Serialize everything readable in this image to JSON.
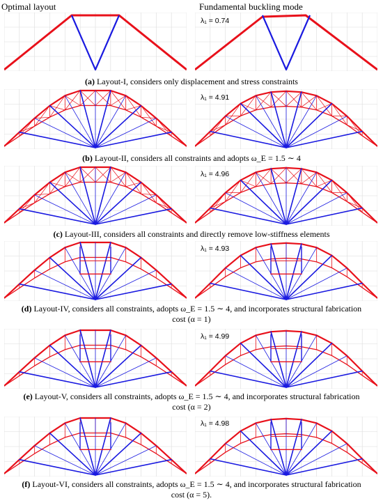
{
  "headers": {
    "left": "Optimal layout",
    "right": "Fundamental buckling mode"
  },
  "lambda_symbol": "λ₁",
  "rows": [
    {
      "id": "a",
      "lambda": "0.74",
      "caption_letter": "(a)",
      "caption": "Layout-I, considers only displacement and stress constraints"
    },
    {
      "id": "b",
      "lambda": "4.91",
      "caption_letter": "(b)",
      "caption": "Layout-II, considers all constraints and adopts ω_E = 1.5 ∼ 4"
    },
    {
      "id": "c",
      "lambda": "4.96",
      "caption_letter": "(c)",
      "caption": "Layout-III, considers all constraints and directly remove low-stiffness elements"
    },
    {
      "id": "d",
      "lambda": "4.93",
      "caption_letter": "(d)",
      "caption": "Layout-IV, considers all constraints, adopts ω_E = 1.5 ∼ 4, and incorporates structural fabrication",
      "caption_line2": "cost (α = 1)"
    },
    {
      "id": "e",
      "lambda": "4.99",
      "caption_letter": "(e)",
      "caption": "Layout-V, considers all constraints, adopts ω_E = 1.5 ∼ 4, and incorporates structural fabrication",
      "caption_line2": "cost (α = 2)"
    },
    {
      "id": "f",
      "lambda": "4.98",
      "caption_letter": "(f)",
      "caption": "Layout-VI, considers all constraints, adopts ω_E = 1.5 ∼ 4, and incorporates structural fabrication",
      "caption_line2": "cost (α = 5)."
    }
  ],
  "colors": {
    "compression": "#e8101a",
    "tension": "#1a1ae0",
    "grid": "#dcdcdc",
    "ghost": "#aaaaaa"
  }
}
